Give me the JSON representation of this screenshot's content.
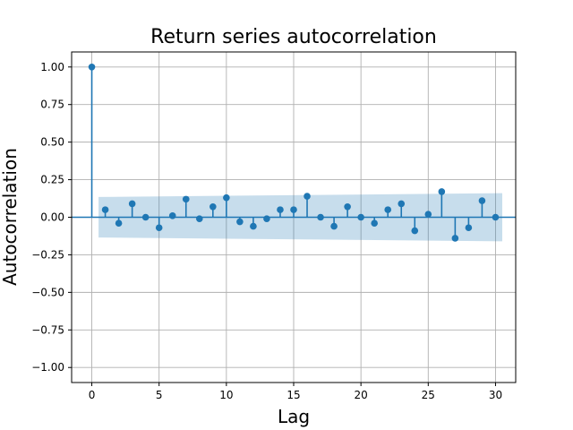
{
  "chart_data": {
    "type": "scatter",
    "subtype": "autocorrelation-stem",
    "title": "Return series autocorrelation",
    "xlabel": "Lag",
    "ylabel": "Autocorrelation",
    "xlim": [
      -1.5,
      31.5
    ],
    "ylim": [
      -1.1,
      1.1
    ],
    "xticks": [
      0,
      5,
      10,
      15,
      20,
      25,
      30
    ],
    "xtick_labels": [
      "0",
      "5",
      "10",
      "15",
      "20",
      "25",
      "30"
    ],
    "yticks": [
      1.0,
      0.75,
      0.5,
      0.25,
      0.0,
      -0.25,
      -0.5,
      -0.75,
      -1.0
    ],
    "ytick_labels": [
      "1.00",
      "0.75",
      "0.50",
      "0.25",
      "0.00",
      "−0.25",
      "−0.50",
      "−0.75",
      "−1.00"
    ],
    "grid": true,
    "colors": {
      "series": "#1f77b4",
      "confidence_band": "#1f77b4",
      "grid": "#b0b0b0"
    },
    "lags": [
      0,
      1,
      2,
      3,
      4,
      5,
      6,
      7,
      8,
      9,
      10,
      11,
      12,
      13,
      14,
      15,
      16,
      17,
      18,
      19,
      20,
      21,
      22,
      23,
      24,
      25,
      26,
      27,
      28,
      29,
      30
    ],
    "values": [
      1.0,
      0.05,
      -0.04,
      0.09,
      0.0,
      -0.07,
      0.01,
      0.12,
      -0.01,
      0.07,
      0.13,
      -0.03,
      -0.06,
      -0.01,
      0.05,
      0.05,
      0.14,
      0.0,
      -0.06,
      0.07,
      0.0,
      -0.04,
      0.05,
      0.09,
      -0.09,
      0.02,
      0.17,
      -0.14,
      -0.07,
      0.11,
      0.0
    ],
    "confidence_band": {
      "x": [
        0.5,
        30.5
      ],
      "upper": [
        0.135,
        0.16
      ],
      "lower": [
        -0.135,
        -0.16
      ]
    }
  }
}
